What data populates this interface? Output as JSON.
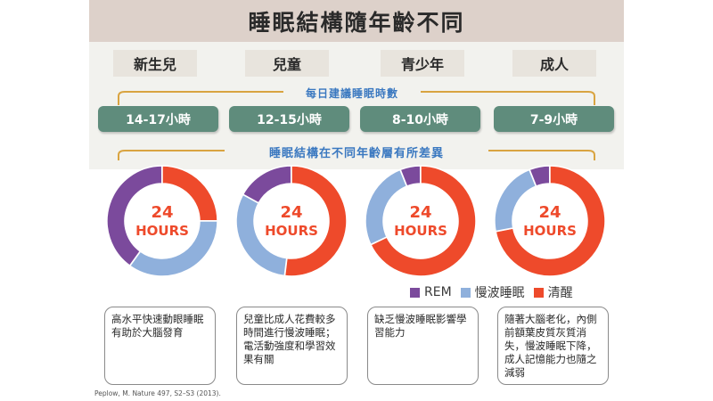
{
  "title": "睡眠結構隨年齡不同",
  "age_groups": [
    "新生兒",
    "兒童",
    "青少年",
    "成人"
  ],
  "sleep_label": "每日建議睡眠時數",
  "sleep_hours": [
    "14-17小時",
    "12-15小時",
    "8-10小時",
    "7-9小時"
  ],
  "structure_label": "睡眠結構在不同年齡層有所差異",
  "center_label": [
    "24",
    "HOURS"
  ],
  "colors": {
    "REM": "#7b4a9c",
    "slow_wave": "#8fb0dc",
    "awake": "#ee4a2b",
    "pill": "#5f8c7c",
    "title_bar": "#ddd1ca"
  },
  "legend": [
    {
      "name": "REM",
      "color": "#7b4a9c"
    },
    {
      "name": "慢波睡眠",
      "color": "#8fb0dc"
    },
    {
      "name": "清醒",
      "color": "#ee4a2b"
    }
  ],
  "chart_data": {
    "type": "pie",
    "variant": "donut",
    "series_names": [
      "清醒",
      "慢波睡眠",
      "REM"
    ],
    "charts": [
      {
        "category": "新生兒",
        "values": {
          "清醒": 0.25,
          "慢波睡眠": 0.35,
          "REM": 0.4
        }
      },
      {
        "category": "兒童",
        "values": {
          "清醒": 0.52,
          "慢波睡眠": 0.31,
          "REM": 0.17
        }
      },
      {
        "category": "青少年",
        "values": {
          "清醒": 0.68,
          "慢波睡眠": 0.26,
          "REM": 0.06
        }
      },
      {
        "category": "成人",
        "values": {
          "清醒": 0.72,
          "慢波睡眠": 0.22,
          "REM": 0.06
        }
      }
    ]
  },
  "notes": [
    "高水平快速動眼睡眠有助於大腦發育",
    "兒童比成人花費較多時間進行慢波睡眠；電活動強度和學習效果有關",
    "缺乏慢波睡眠影響學習能力",
    "隨著大腦老化，內側前額葉皮質灰質消失，慢波睡眠下降，成人記憶能力也隨之減弱"
  ],
  "citation": "Peplow, M. Nature 497, S2–S3 (2013)."
}
